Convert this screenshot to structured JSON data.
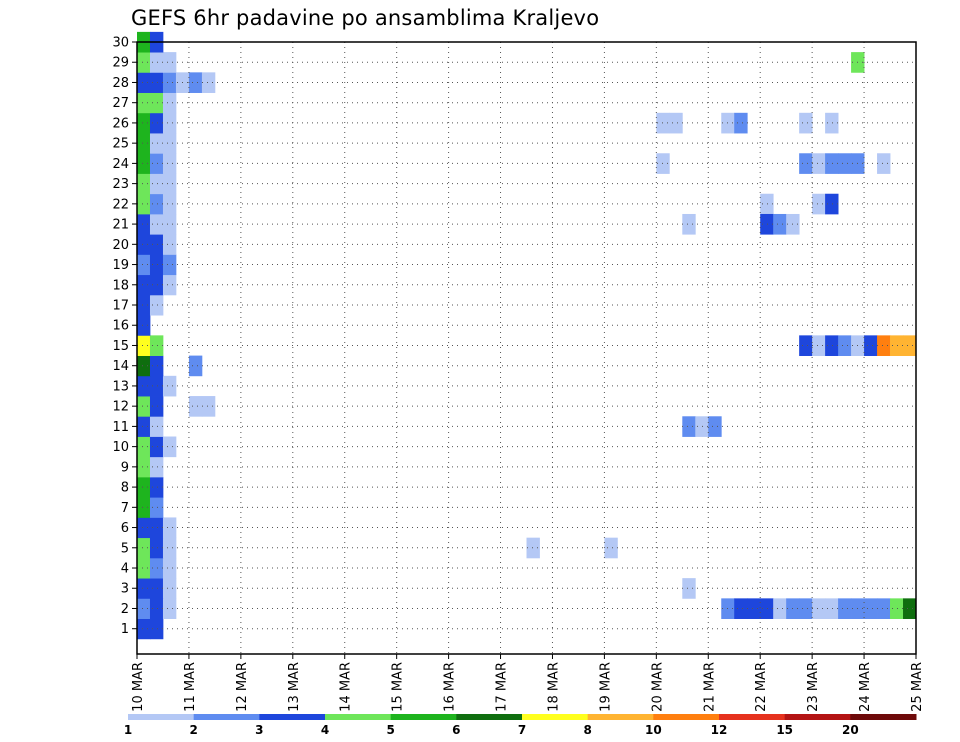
{
  "title": "GEFS 6hr padavine po ansamblima Kraljevo",
  "chart_data": {
    "type": "heatmap",
    "title": "GEFS 6hr padavine po ansamblima Kraljevo",
    "xlabel": "",
    "ylabel": "",
    "x_ticks": [
      "10 MAR",
      "11 MAR",
      "12 MAR",
      "13 MAR",
      "14 MAR",
      "15 MAR",
      "16 MAR",
      "17 MAR",
      "18 MAR",
      "19 MAR",
      "20 MAR",
      "21 MAR",
      "22 MAR",
      "23 MAR",
      "24 MAR",
      "25 MAR"
    ],
    "y_ticks": [
      1,
      2,
      3,
      4,
      5,
      6,
      7,
      8,
      9,
      10,
      11,
      12,
      13,
      14,
      15,
      16,
      17,
      18,
      19,
      20,
      21,
      22,
      23,
      24,
      25,
      26,
      27,
      28,
      29,
      30
    ],
    "grid": true,
    "colorbar": {
      "levels": [
        1,
        2,
        3,
        4,
        5,
        6,
        7,
        8,
        10,
        12,
        15,
        20
      ],
      "colors": [
        "#b4c8f5",
        "#5f8cf0",
        "#1e46dc",
        "#6ee65a",
        "#1eb41e",
        "#0f6e0f",
        "#ffff1e",
        "#ffb432",
        "#ff7f0f",
        "#e6321e",
        "#b41414",
        "#6e0a0a"
      ]
    },
    "cells": [
      [
        10.0,
        1,
        3
      ],
      [
        10.25,
        1,
        3
      ],
      [
        10.0,
        2,
        2
      ],
      [
        10.25,
        2,
        3
      ],
      [
        10.5,
        2,
        1
      ],
      [
        10.0,
        3,
        3
      ],
      [
        10.25,
        3,
        3
      ],
      [
        10.5,
        3,
        1
      ],
      [
        10.0,
        4,
        4
      ],
      [
        10.25,
        4,
        2
      ],
      [
        10.5,
        4,
        1
      ],
      [
        10.0,
        5,
        4
      ],
      [
        10.25,
        5,
        3
      ],
      [
        10.5,
        5,
        1
      ],
      [
        10.0,
        6,
        3
      ],
      [
        10.25,
        6,
        3
      ],
      [
        10.5,
        6,
        1
      ],
      [
        10.0,
        7,
        5
      ],
      [
        10.25,
        7,
        2
      ],
      [
        10.0,
        8,
        5
      ],
      [
        10.25,
        8,
        3
      ],
      [
        10.0,
        9,
        4
      ],
      [
        10.25,
        9,
        1
      ],
      [
        10.0,
        10,
        4
      ],
      [
        10.25,
        10,
        3
      ],
      [
        10.5,
        10,
        1
      ],
      [
        10.0,
        11,
        3
      ],
      [
        10.25,
        11,
        1
      ],
      [
        10.0,
        12,
        4
      ],
      [
        10.25,
        12,
        3
      ],
      [
        10.0,
        13,
        3
      ],
      [
        10.25,
        13,
        3
      ],
      [
        10.5,
        13,
        1
      ],
      [
        10.0,
        14,
        6
      ],
      [
        10.25,
        14,
        3
      ],
      [
        10.0,
        15,
        7
      ],
      [
        10.25,
        15,
        4
      ],
      [
        10.0,
        16,
        3
      ],
      [
        10.0,
        17,
        3
      ],
      [
        10.25,
        17,
        1
      ],
      [
        10.0,
        18,
        3
      ],
      [
        10.25,
        18,
        3
      ],
      [
        10.5,
        18,
        1
      ],
      [
        10.0,
        19,
        2
      ],
      [
        10.25,
        19,
        3
      ],
      [
        10.5,
        19,
        2
      ],
      [
        10.0,
        20,
        3
      ],
      [
        10.25,
        20,
        3
      ],
      [
        10.5,
        20,
        1
      ],
      [
        10.0,
        21,
        3
      ],
      [
        10.25,
        21,
        1
      ],
      [
        10.5,
        21,
        1
      ],
      [
        10.0,
        22,
        4
      ],
      [
        10.25,
        22,
        2
      ],
      [
        10.5,
        22,
        1
      ],
      [
        10.0,
        23,
        4
      ],
      [
        10.25,
        23,
        1
      ],
      [
        10.5,
        23,
        1
      ],
      [
        10.0,
        24,
        5
      ],
      [
        10.25,
        24,
        2
      ],
      [
        10.5,
        24,
        1
      ],
      [
        10.0,
        25,
        5
      ],
      [
        10.25,
        25,
        1
      ],
      [
        10.5,
        25,
        1
      ],
      [
        10.0,
        26,
        5
      ],
      [
        10.25,
        26,
        3
      ],
      [
        10.5,
        26,
        1
      ],
      [
        10.0,
        27,
        4
      ],
      [
        10.25,
        27,
        4
      ],
      [
        10.5,
        27,
        1
      ],
      [
        10.0,
        28,
        3
      ],
      [
        10.25,
        28,
        3
      ],
      [
        10.5,
        28,
        2
      ],
      [
        10.75,
        28,
        1
      ],
      [
        11.0,
        28,
        2
      ],
      [
        11.25,
        28,
        1
      ],
      [
        10.0,
        29,
        4
      ],
      [
        10.25,
        29,
        1
      ],
      [
        10.5,
        29,
        1
      ],
      [
        10.0,
        30,
        5
      ],
      [
        10.25,
        30,
        3
      ],
      [
        11.0,
        14,
        2
      ],
      [
        11.0,
        12,
        1
      ],
      [
        11.25,
        12,
        1
      ],
      [
        17.5,
        5,
        1
      ],
      [
        19.0,
        5,
        1
      ],
      [
        20.0,
        26,
        1
      ],
      [
        20.25,
        26,
        1
      ],
      [
        20.0,
        24,
        1
      ],
      [
        20.5,
        21,
        1
      ],
      [
        20.5,
        11,
        2
      ],
      [
        20.75,
        11,
        1
      ],
      [
        21.0,
        11,
        2
      ],
      [
        20.5,
        3,
        1
      ],
      [
        21.25,
        26,
        1
      ],
      [
        21.5,
        26,
        2
      ],
      [
        22.0,
        22,
        1
      ],
      [
        22.0,
        21,
        3
      ],
      [
        22.25,
        21,
        2
      ],
      [
        22.5,
        21,
        1
      ],
      [
        21.25,
        2,
        2
      ],
      [
        21.5,
        2,
        3
      ],
      [
        21.75,
        2,
        3
      ],
      [
        22.0,
        2,
        3
      ],
      [
        22.25,
        2,
        1
      ],
      [
        22.5,
        2,
        2
      ],
      [
        22.75,
        2,
        2
      ],
      [
        23.0,
        2,
        1
      ],
      [
        23.25,
        2,
        1
      ],
      [
        23.5,
        2,
        2
      ],
      [
        23.75,
        2,
        2
      ],
      [
        24.0,
        2,
        2
      ],
      [
        24.25,
        2,
        2
      ],
      [
        24.5,
        2,
        4
      ],
      [
        24.75,
        2,
        6
      ],
      [
        22.75,
        26,
        1
      ],
      [
        23.25,
        26,
        1
      ],
      [
        22.75,
        24,
        2
      ],
      [
        23.0,
        24,
        1
      ],
      [
        23.25,
        24,
        2
      ],
      [
        23.5,
        24,
        2
      ],
      [
        23.75,
        24,
        2
      ],
      [
        24.25,
        24,
        1
      ],
      [
        23.0,
        22,
        1
      ],
      [
        23.25,
        22,
        3
      ],
      [
        22.75,
        15,
        3
      ],
      [
        23.0,
        15,
        1
      ],
      [
        23.25,
        15,
        3
      ],
      [
        23.5,
        15,
        2
      ],
      [
        23.75,
        15,
        1
      ],
      [
        24.0,
        15,
        3
      ],
      [
        24.25,
        15,
        9
      ],
      [
        24.5,
        15,
        8
      ],
      [
        24.75,
        15,
        8
      ],
      [
        23.75,
        29,
        4
      ]
    ]
  }
}
